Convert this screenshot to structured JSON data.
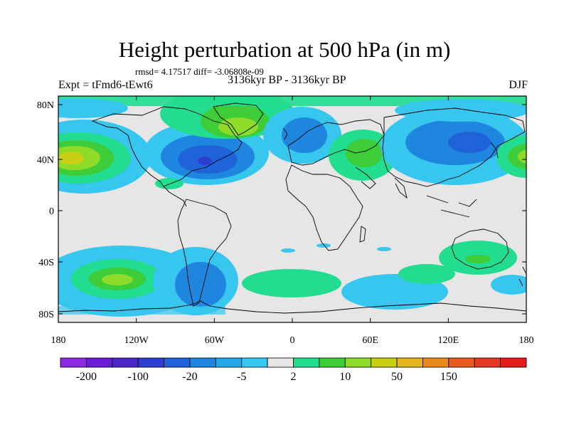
{
  "title": "Height perturbation at 500 hPa (in m)",
  "stats": "rmsd= 4.17517  diff= -3.06808e-09",
  "left_label": "Expt = tFmd6-tEwt6",
  "center_label": "3136kyr BP - 3136kyr BP",
  "right_label": "DJF",
  "axes": {
    "x_ticks": [
      "180",
      "120W",
      "60W",
      "0",
      "60E",
      "120E",
      "180"
    ],
    "y_ticks": [
      "80N",
      "40N",
      "0",
      "40S",
      "80S"
    ]
  },
  "colorbar": {
    "colors": [
      "#8a2be2",
      "#6a1fd6",
      "#4a28c8",
      "#2e3fd0",
      "#1f62d9",
      "#1f86e0",
      "#24a8e8",
      "#36c6ee",
      "#e6e6e6",
      "#22dc90",
      "#3ecd38",
      "#8edb2a",
      "#c8cf14",
      "#e3b51a",
      "#e8891c",
      "#e65a1f",
      "#e43a24",
      "#e21c1c"
    ],
    "labels": [
      "-200",
      "-100",
      "-20",
      "-5",
      "2",
      "10",
      "50",
      "150"
    ]
  },
  "map_colors": {
    "background": "#e6e6e6",
    "light_blue": "#36c6ee",
    "blue": "#1f86e0",
    "dark_blue": "#1f62d9",
    "navy": "#2e3fd0",
    "green": "#22dc90",
    "lime": "#3ecd38",
    "yellow_green": "#8edb2a",
    "yellow": "#c8cf14"
  }
}
